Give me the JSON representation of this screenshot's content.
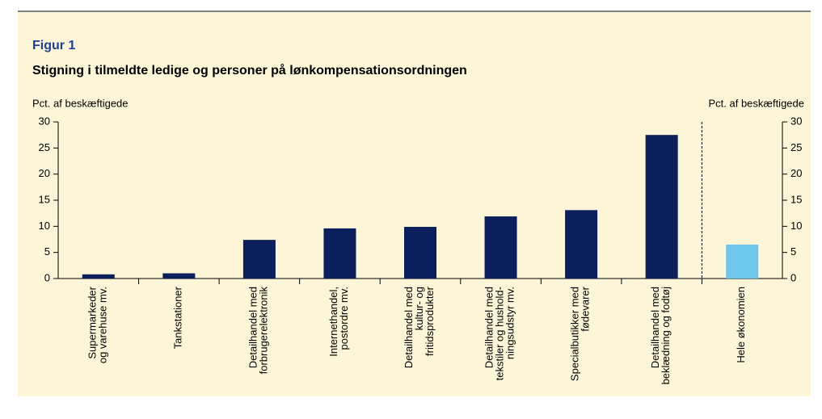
{
  "chart_data": {
    "type": "bar",
    "title": "Figur 1",
    "subtitle": "Stigning i tilmeldte ledige og personer på lønkompensationsordningen",
    "ylabel": "Pct. af beskæftigede",
    "y2label": "Pct. af beskæftigede",
    "categories": [
      "Supermarkeder\nog varehuse mv.",
      "Tankstationer",
      "Detailhandel med\nforbrugerelektronik",
      "Internethandel,\npostordre mv.",
      "Detailhandel med\nkultur- og\nfritidsprodukter",
      "Detailhandel med\ntekstiler og hushold-\nningsudstyr mv.",
      "Specialbutikker med\nfødevarer",
      "Detailhandel med\nbeklædning og fodtøj",
      "Hele økonomien"
    ],
    "values": [
      0.8,
      1.0,
      7.4,
      9.6,
      9.9,
      11.9,
      13.1,
      27.5,
      6.5
    ],
    "colors": [
      "#0a1f5c",
      "#0a1f5c",
      "#0a1f5c",
      "#0a1f5c",
      "#0a1f5c",
      "#0a1f5c",
      "#0a1f5c",
      "#0a1f5c",
      "#6ec6ea"
    ],
    "ylim": [
      0,
      30
    ],
    "yticks": [
      0,
      5,
      10,
      15,
      20,
      25,
      30
    ],
    "y2lim": [
      0,
      30
    ],
    "y2ticks": [
      0,
      5,
      10,
      15,
      20,
      25,
      30
    ]
  }
}
